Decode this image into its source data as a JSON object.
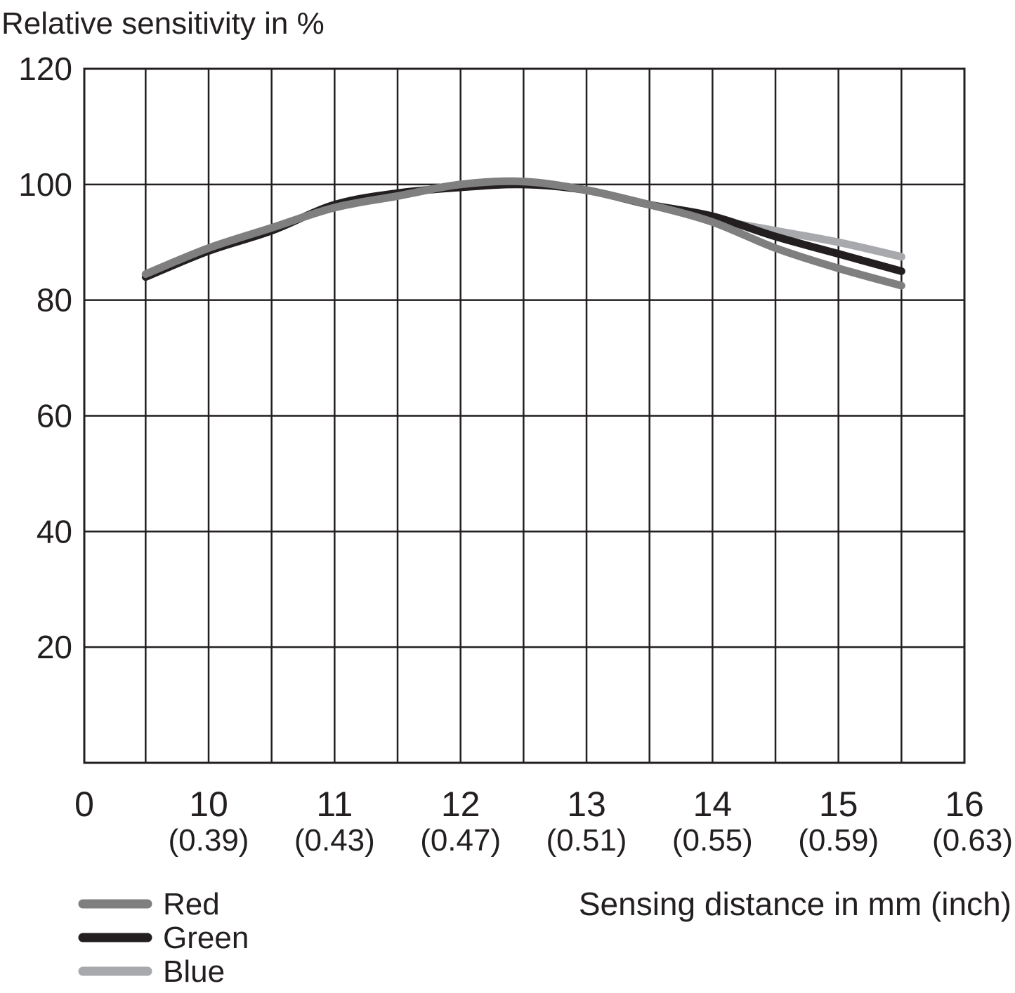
{
  "chart_data": {
    "type": "line",
    "ylabel": "Relative sensitivity in %",
    "xlabel": "Sensing distance in mm (inch)",
    "xlim": [
      9,
      16
    ],
    "ylim": [
      0,
      120
    ],
    "grid": true,
    "legend_position": "bottom-left",
    "y_ticks": [
      "20",
      "40",
      "60",
      "80",
      "100",
      "120"
    ],
    "x_ticks": [
      {
        "mm": "0",
        "inch": ""
      },
      {
        "mm": "10",
        "inch": "(0.39)"
      },
      {
        "mm": "11",
        "inch": "(0.43)"
      },
      {
        "mm": "12",
        "inch": "(0.47)"
      },
      {
        "mm": "13",
        "inch": "(0.51)"
      },
      {
        "mm": "14",
        "inch": "(0.55)"
      },
      {
        "mm": "15",
        "inch": "(0.59)"
      },
      {
        "mm": "16",
        "inch": "(0.63)"
      }
    ],
    "series": [
      {
        "name": "Red",
        "color": "#7f7f7f",
        "points": [
          [
            9.5,
            84.5
          ],
          [
            10,
            89
          ],
          [
            10.5,
            92.5
          ],
          [
            11,
            96
          ],
          [
            11.5,
            98
          ],
          [
            12,
            100
          ],
          [
            12.5,
            100.5
          ],
          [
            13,
            99
          ],
          [
            13.5,
            96.5
          ],
          [
            14,
            93.5
          ],
          [
            14.5,
            89
          ],
          [
            15,
            85.5
          ],
          [
            15.5,
            82.5
          ]
        ]
      },
      {
        "name": "Green",
        "color": "#231f20",
        "points": [
          [
            9.5,
            84
          ],
          [
            10,
            88.5
          ],
          [
            10.5,
            92
          ],
          [
            11,
            96.5
          ],
          [
            11.5,
            98.5
          ],
          [
            12,
            99.5
          ],
          [
            12.5,
            100
          ],
          [
            13,
            99
          ],
          [
            13.5,
            96.5
          ],
          [
            14,
            94.5
          ],
          [
            14.5,
            91
          ],
          [
            15,
            88
          ],
          [
            15.5,
            85
          ]
        ]
      },
      {
        "name": "Blue",
        "color": "#a7a9ac",
        "points": [
          [
            9.5,
            84.5
          ],
          [
            10,
            89
          ],
          [
            10.5,
            92.5
          ],
          [
            11,
            96
          ],
          [
            11.5,
            98
          ],
          [
            12,
            100
          ],
          [
            12.5,
            100.5
          ],
          [
            13,
            99
          ],
          [
            13.5,
            96.5
          ],
          [
            14,
            94
          ],
          [
            14.5,
            92
          ],
          [
            15,
            90
          ],
          [
            15.5,
            87.5
          ]
        ]
      }
    ]
  }
}
